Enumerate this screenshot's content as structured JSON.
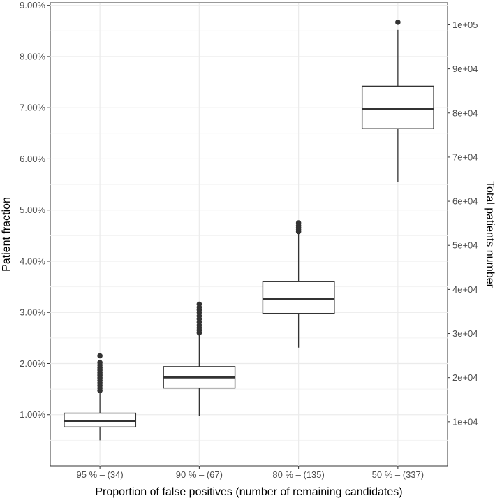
{
  "chart_data": {
    "type": "box",
    "xlabel": "Proportion of false positives (number of remaining candidates)",
    "ylabel": "Patient fraction",
    "y2label": "Total patients number",
    "categories": [
      "95 % – (34)",
      "90 % – (67)",
      "80 % – (135)",
      "50 % – (337)"
    ],
    "ylim": [
      0.0,
      0.0905
    ],
    "y_ticks": [
      0.01,
      0.02,
      0.03,
      0.04,
      0.05,
      0.06,
      0.07,
      0.08,
      0.09
    ],
    "y_tick_labels": [
      "1.00%",
      "2.00%",
      "3.00%",
      "4.00%",
      "5.00%",
      "6.00%",
      "7.00%",
      "8.00%",
      "9.00%"
    ],
    "y2_ticks": [
      10000,
      20000,
      30000,
      40000,
      50000,
      60000,
      70000,
      80000,
      90000,
      100000
    ],
    "y2_tick_labels": [
      "1e+04",
      "2e+04",
      "3e+04",
      "4e+04",
      "5e+04",
      "6e+04",
      "7e+04",
      "8e+04",
      "9e+04",
      "1e+05"
    ],
    "y2_per_fraction": 1160000,
    "grid": true,
    "boxes": [
      {
        "category": "95 % – (34)",
        "whisker_low": 0.005,
        "q1": 0.0076,
        "median": 0.0088,
        "q3": 0.0103,
        "whisker_high": 0.0144,
        "outliers": [
          0.0147,
          0.0152,
          0.0157,
          0.0162,
          0.0167,
          0.0172,
          0.0177,
          0.0182,
          0.0187,
          0.0192,
          0.0197,
          0.0202,
          0.0215
        ]
      },
      {
        "category": "90 % – (67)",
        "whisker_low": 0.0098,
        "q1": 0.0152,
        "median": 0.0173,
        "q3": 0.0194,
        "whisker_high": 0.0256,
        "outliers": [
          0.026,
          0.0265,
          0.027,
          0.0275,
          0.0281,
          0.0287,
          0.0293,
          0.03,
          0.0305,
          0.031,
          0.0316
        ]
      },
      {
        "category": "80 % – (135)",
        "whisker_low": 0.0231,
        "q1": 0.0298,
        "median": 0.0326,
        "q3": 0.036,
        "whisker_high": 0.0455,
        "outliers": [
          0.0458,
          0.0462,
          0.0466,
          0.047,
          0.0475
        ]
      },
      {
        "category": "50 % – (337)",
        "whisker_low": 0.0555,
        "q1": 0.0659,
        "median": 0.0698,
        "q3": 0.0742,
        "whisker_high": 0.0852,
        "outliers": [
          0.0867
        ]
      }
    ]
  }
}
